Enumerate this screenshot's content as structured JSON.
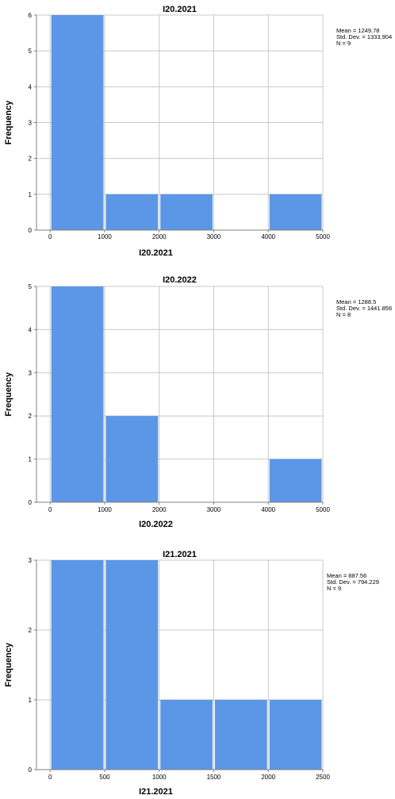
{
  "colors": {
    "bar": "#5b97e6",
    "grid": "#c8c8c8",
    "axis": "#808080"
  },
  "chart_data": [
    {
      "type": "bar",
      "title": "I20.2021",
      "xlabel": "I20.2021",
      "ylabel": "Frequency",
      "bins": [
        [
          0,
          1000
        ],
        [
          1000,
          2000
        ],
        [
          2000,
          3000
        ],
        [
          3000,
          4000
        ],
        [
          4000,
          5000
        ]
      ],
      "values": [
        6,
        1,
        1,
        0,
        1
      ],
      "xlim": [
        -250,
        5000
      ],
      "ylim": [
        0,
        6
      ],
      "xticks": [
        0,
        1000,
        2000,
        3000,
        4000,
        5000
      ],
      "yticks": [
        0,
        1,
        2,
        3,
        4,
        5,
        6
      ],
      "stats": [
        "Mean = 1249.78",
        "Std. Dev. = 1333.904",
        "N = 9"
      ],
      "grid": true,
      "legend": "top-right"
    },
    {
      "type": "bar",
      "title": "I20.2022",
      "xlabel": "I20.2022",
      "ylabel": "Frequency",
      "bins": [
        [
          0,
          1000
        ],
        [
          1000,
          2000
        ],
        [
          2000,
          3000
        ],
        [
          3000,
          4000
        ],
        [
          4000,
          5000
        ]
      ],
      "values": [
        5,
        2,
        0,
        0,
        1
      ],
      "xlim": [
        -250,
        5000
      ],
      "ylim": [
        0,
        5
      ],
      "xticks": [
        0,
        1000,
        2000,
        3000,
        4000,
        5000
      ],
      "yticks": [
        0,
        1,
        2,
        3,
        4,
        5
      ],
      "stats": [
        "Mean = 1288.5",
        "Std. Dev. = 1441.856",
        "N = 8"
      ],
      "grid": true,
      "legend": "top-right"
    },
    {
      "type": "bar",
      "title": "I21.2021",
      "xlabel": "I21.2021",
      "ylabel": "Frequency",
      "bins": [
        [
          0,
          500
        ],
        [
          500,
          1000
        ],
        [
          1000,
          1500
        ],
        [
          1500,
          2000
        ],
        [
          2000,
          2500
        ]
      ],
      "values": [
        3,
        3,
        1,
        1,
        1
      ],
      "xlim": [
        -125,
        2500
      ],
      "ylim": [
        0,
        3
      ],
      "xticks": [
        0,
        500,
        1000,
        1500,
        2000,
        2500
      ],
      "yticks": [
        0,
        1,
        2,
        3
      ],
      "stats": [
        "Mean = 887.56",
        "Std. Dev. = 794.229",
        "N = 9"
      ],
      "grid": true,
      "legend": "top-right"
    }
  ]
}
